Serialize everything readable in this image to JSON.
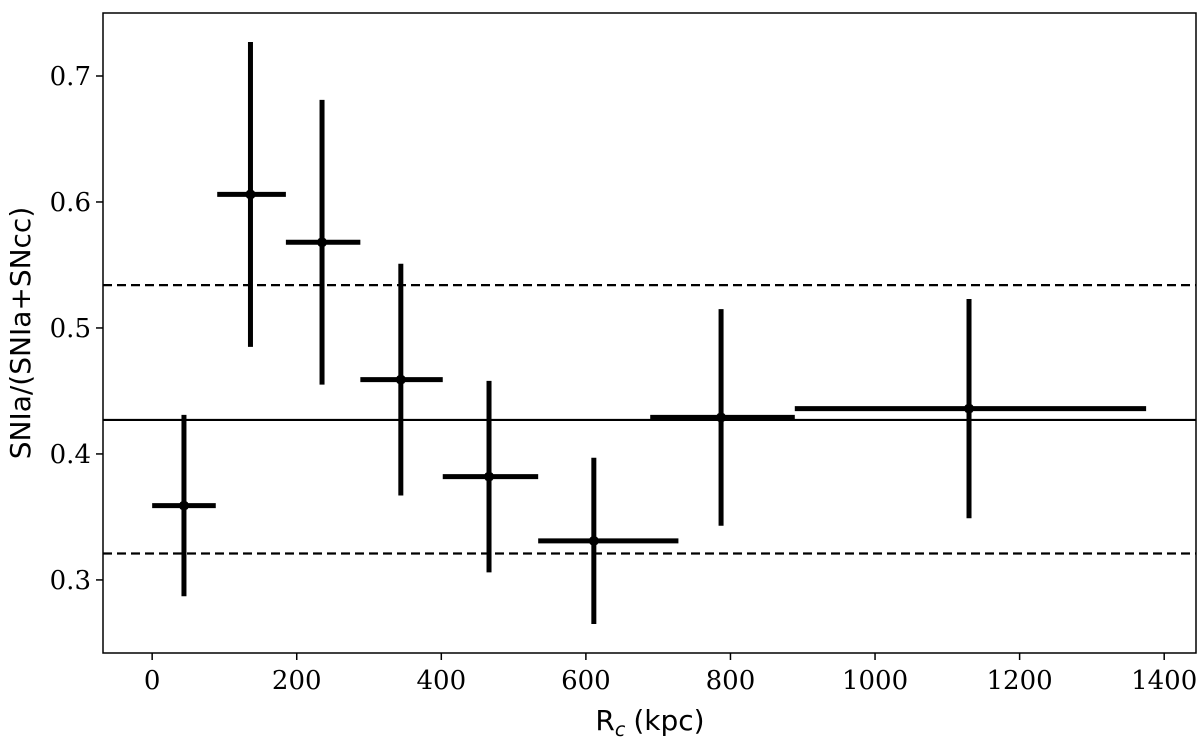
{
  "chart_data": {
    "type": "errorbar",
    "ylabel": "SNIa/(SNIa+SNcc)",
    "xlabel": {
      "base": "R",
      "sub": "c",
      "unit": "(kpc)"
    },
    "x": [
      44,
      136,
      235,
      344,
      466,
      611,
      787,
      1130
    ],
    "xerr_low": [
      44,
      46,
      50,
      56,
      64,
      77,
      98,
      241
    ],
    "xerr_high": [
      44,
      49,
      53,
      58,
      68,
      117,
      102,
      245
    ],
    "values": [
      0.359,
      0.606,
      0.568,
      0.459,
      0.382,
      0.331,
      0.429,
      0.436
    ],
    "yerr": [
      0.072,
      0.121,
      0.113,
      0.092,
      0.076,
      0.066,
      0.086,
      0.087
    ],
    "color": "#000000",
    "hlines": [
      {
        "y": 0.427,
        "style": "solid"
      },
      {
        "y": 0.534,
        "style": "dashed"
      },
      {
        "y": 0.321,
        "style": "dashed"
      }
    ],
    "xlim": [
      -68,
      1444
    ],
    "ylim": [
      0.242,
      0.75
    ],
    "xticks": [
      0,
      200,
      400,
      600,
      800,
      1000,
      1200,
      1400
    ],
    "yticks": [
      0.3,
      0.4,
      0.5,
      0.6,
      0.7
    ]
  }
}
